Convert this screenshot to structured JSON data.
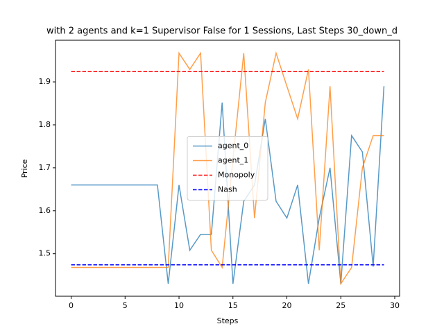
{
  "chart_data": {
    "type": "line",
    "title": "with 2 agents and k=1 Supervisor False for 1 Sessions, Last Steps 30_down_d",
    "xlabel": "Steps",
    "ylabel": "Price",
    "x": [
      0,
      1,
      2,
      3,
      4,
      5,
      6,
      7,
      8,
      9,
      10,
      11,
      12,
      13,
      14,
      15,
      16,
      17,
      18,
      19,
      20,
      21,
      22,
      23,
      24,
      25,
      26,
      27,
      28,
      29
    ],
    "series": [
      {
        "name": "agent_0",
        "color": "#1f77b4",
        "values": [
          1.66,
          1.66,
          1.66,
          1.66,
          1.66,
          1.66,
          1.66,
          1.66,
          1.66,
          1.43,
          1.66,
          1.508,
          1.545,
          1.545,
          1.852,
          1.43,
          1.622,
          1.66,
          1.814,
          1.622,
          1.583,
          1.66,
          1.43,
          1.583,
          1.7,
          1.43,
          1.775,
          1.737,
          1.47,
          1.89
        ]
      },
      {
        "name": "agent_1",
        "color": "#ff7f0e",
        "values": [
          1.468,
          1.468,
          1.468,
          1.468,
          1.468,
          1.468,
          1.468,
          1.468,
          1.468,
          1.468,
          1.967,
          1.929,
          1.967,
          1.508,
          1.468,
          1.72,
          1.967,
          1.583,
          1.852,
          1.967,
          1.89,
          1.814,
          1.929,
          1.508,
          1.89,
          1.43,
          1.468,
          1.7,
          1.775,
          1.775
        ]
      }
    ],
    "hlines": [
      {
        "name": "Monopoly",
        "color": "#ff0000",
        "value": 1.924
      },
      {
        "name": "Nash",
        "color": "#0000ff",
        "value": 1.474
      }
    ],
    "xlim": [
      -1.45,
      30.45
    ],
    "ylim": [
      1.401,
      1.997
    ],
    "xticks": [
      0,
      5,
      10,
      15,
      20,
      25,
      30
    ],
    "yticks": [
      1.5,
      1.6,
      1.7,
      1.8,
      1.9
    ],
    "legend": "center"
  }
}
